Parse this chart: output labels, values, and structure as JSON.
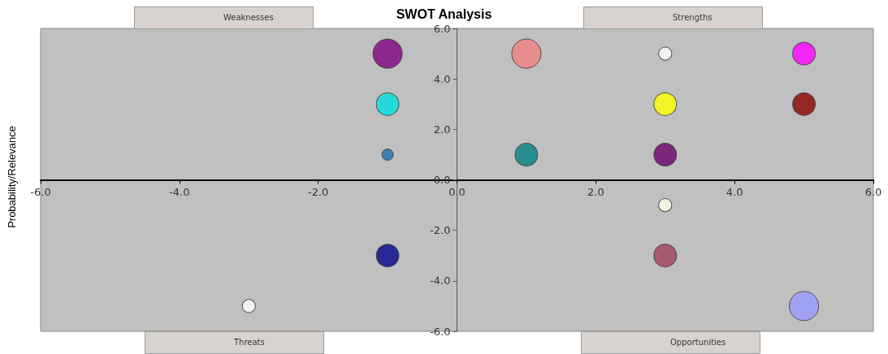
{
  "chart_data": {
    "type": "bubble",
    "title": "SWOT Analysis",
    "ylabel": "Probability/Relevance",
    "annotations": [
      "Weaknesses",
      "Strengths",
      "Threats",
      "Opportunities"
    ],
    "x": [
      -1,
      -1,
      -1,
      -1,
      -3,
      1,
      3,
      5,
      3,
      5,
      1,
      3,
      3,
      3,
      5
    ],
    "values": [
      5,
      3,
      1,
      -3,
      -5,
      5,
      5,
      5,
      3,
      3,
      1,
      1,
      -1,
      -3,
      -5
    ],
    "sizes": [
      1,
      0.6,
      0.15,
      0.6,
      0.2,
      1,
      0.2,
      0.6,
      0.6,
      0.6,
      0.6,
      0.6,
      0.2,
      0.6,
      1
    ],
    "colors": [
      "#800080",
      "#00e0e0",
      "#1f6fa8",
      "#00008b",
      "#ffffff",
      "#f08080",
      "#ffffff",
      "#ff00ff",
      "#ffff00",
      "#8b0000",
      "#008080",
      "#6a006a",
      "#ffffee",
      "#a0405a",
      "#9999ff"
    ],
    "xlim": [
      -6,
      6
    ],
    "ylim": [
      -6,
      6
    ],
    "xticks": [
      {
        "value": -6,
        "label": "-6.0"
      },
      {
        "value": -4,
        "label": "-4.0"
      },
      {
        "value": -2,
        "label": "-2.0"
      },
      {
        "value": 0,
        "label": "0.0"
      },
      {
        "value": 2,
        "label": "2.0"
      },
      {
        "value": 4,
        "label": "4.0"
      },
      {
        "value": 6,
        "label": "6.0"
      }
    ],
    "yticks": [
      {
        "value": -6,
        "label": "-6.0"
      },
      {
        "value": -4,
        "label": "-4.0"
      },
      {
        "value": -2,
        "label": "-2.0"
      },
      {
        "value": 0,
        "label": "0.0"
      },
      {
        "value": 2,
        "label": "2.0"
      },
      {
        "value": 4,
        "label": "4.0"
      },
      {
        "value": 6,
        "label": "6.0"
      }
    ],
    "grid": false,
    "marker": "circle"
  }
}
